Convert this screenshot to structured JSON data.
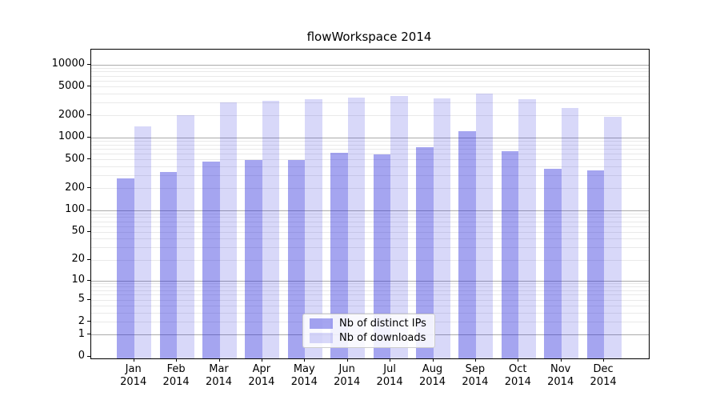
{
  "title": "flowWorkspace 2014",
  "chart_data": {
    "type": "bar",
    "title": "flowWorkspace 2014",
    "categories": [
      "Jan",
      "Feb",
      "Mar",
      "Apr",
      "May",
      "Jun",
      "Jul",
      "Aug",
      "Sep",
      "Oct",
      "Nov",
      "Dec"
    ],
    "year_label": "2014",
    "series": [
      {
        "name": "Nb of distinct IPs",
        "color": "rgba(40,40,220,0.42)",
        "values": [
          275,
          335,
          465,
          490,
          485,
          620,
          580,
          730,
          1220,
          650,
          370,
          350
        ]
      },
      {
        "name": "Nb of downloads",
        "color": "rgba(40,40,220,0.18)",
        "values": [
          1430,
          2010,
          3050,
          3170,
          3300,
          3480,
          3650,
          3450,
          4000,
          3380,
          2550,
          1900
        ]
      }
    ],
    "y_ticks": [
      0,
      1,
      2,
      5,
      10,
      20,
      50,
      100,
      200,
      500,
      1000,
      2000,
      5000,
      10000
    ],
    "y_scale": "log10(1+v)",
    "ylim": [
      0,
      16000
    ],
    "xlabel": "",
    "ylabel": "",
    "grid": true,
    "legend_position": "lower center"
  }
}
